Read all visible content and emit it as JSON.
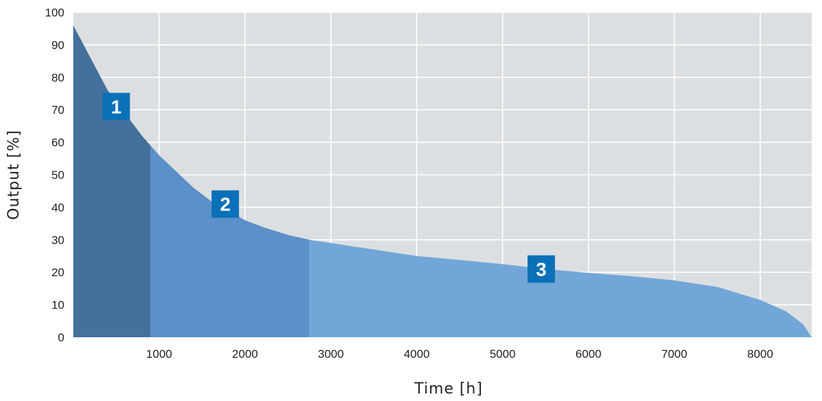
{
  "chart_data": {
    "type": "area",
    "xlabel": "Time [h]",
    "ylabel": "Output [%]",
    "xlim": [
      0,
      8600
    ],
    "ylim": [
      0,
      100
    ],
    "x_ticks": [
      1000,
      2000,
      3000,
      4000,
      5000,
      6000,
      7000,
      8000
    ],
    "y_ticks": [
      0,
      10,
      20,
      30,
      40,
      50,
      60,
      70,
      80,
      90,
      100
    ],
    "grid": true,
    "curve": {
      "x": [
        0,
        200,
        400,
        600,
        800,
        900,
        1000,
        1200,
        1400,
        1600,
        1800,
        2000,
        2200,
        2500,
        2750,
        3000,
        3500,
        4000,
        4500,
        5000,
        5500,
        6000,
        6500,
        7000,
        7500,
        8000,
        8300,
        8500,
        8600
      ],
      "y": [
        96,
        86,
        76,
        69,
        62,
        59,
        56,
        51,
        46,
        42,
        39,
        36,
        34,
        31.5,
        30,
        29,
        27,
        25,
        23.8,
        22.5,
        21,
        19.8,
        18.8,
        17.5,
        15.5,
        11.5,
        8,
        4,
        0
      ]
    },
    "phases": [
      {
        "label": "1",
        "x_start": 0,
        "x_end": 900,
        "color": "#44709c",
        "badge_x": 500,
        "badge_y": 71
      },
      {
        "label": "2",
        "x_start": 900,
        "x_end": 2750,
        "color": "#5b90c8",
        "badge_x": 1770,
        "badge_y": 41
      },
      {
        "label": "3",
        "x_start": 2750,
        "x_end": 8600,
        "color": "#72a6d8",
        "badge_x": 5450,
        "badge_y": 21
      }
    ],
    "badge_color": "#0a70b8",
    "plot_background": "#dcdfe1",
    "grid_color": "#ffffff"
  }
}
